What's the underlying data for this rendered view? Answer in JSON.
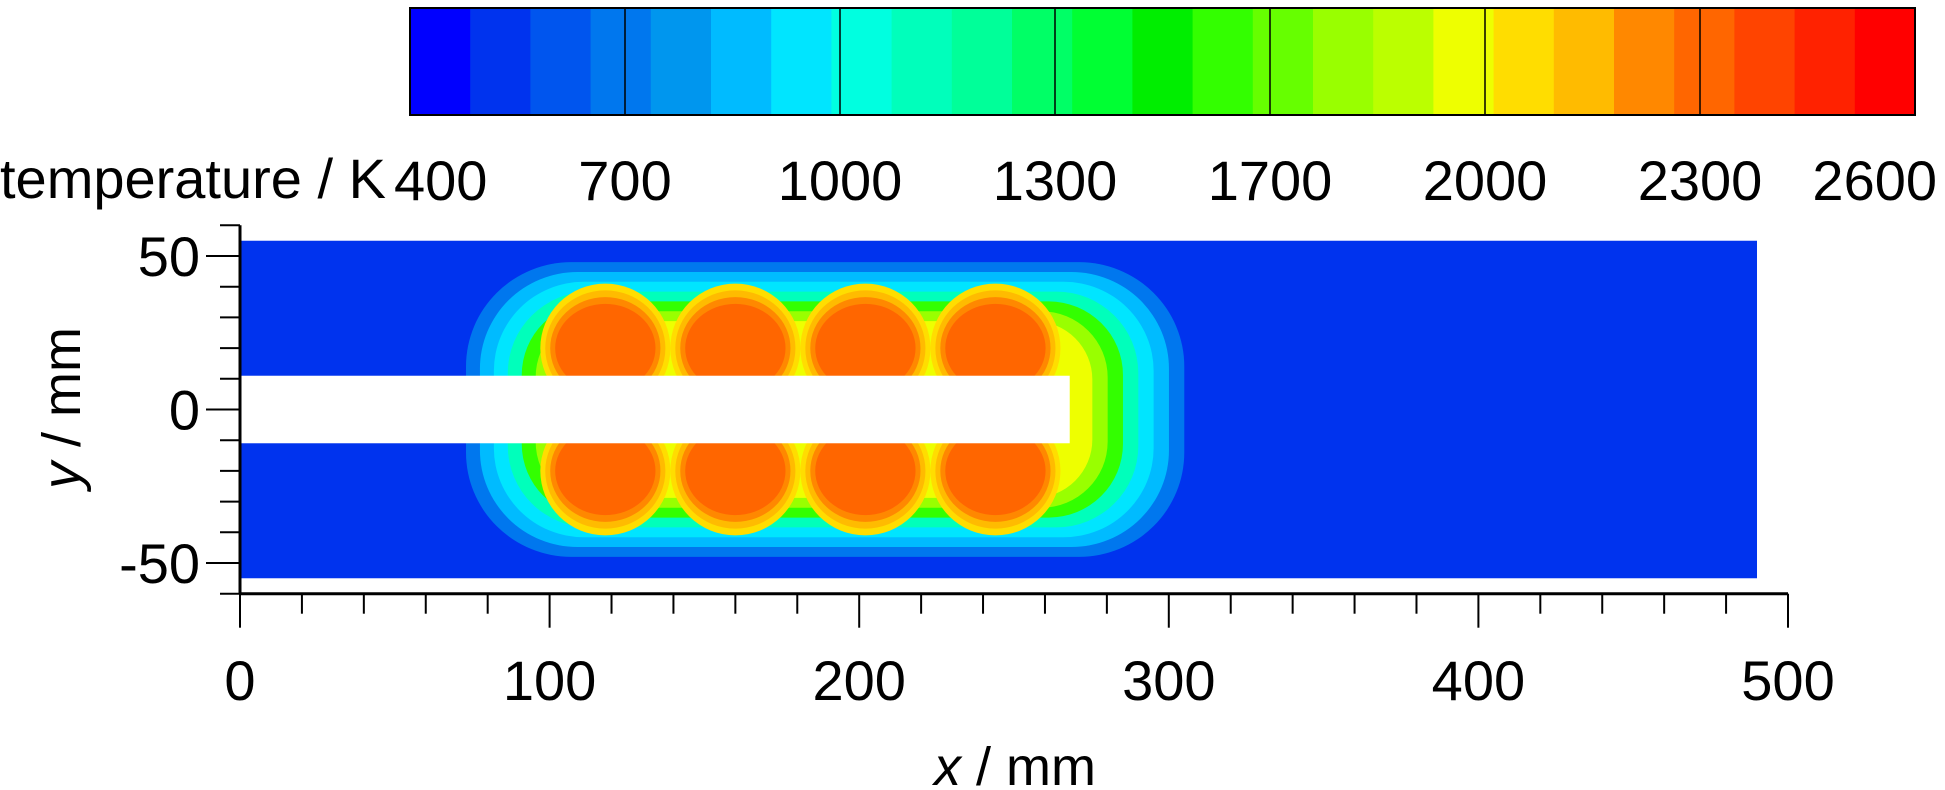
{
  "colorbar": {
    "title": "temperature / K",
    "tick_labels": [
      "400",
      "700",
      "1000",
      "1300",
      "1700",
      "2000",
      "2300",
      "2600"
    ],
    "colors": [
      "#0000ff",
      "#0033ee",
      "#0055ee",
      "#0077ee",
      "#0096ee",
      "#00bbff",
      "#00e5ff",
      "#00ffe0",
      "#00ffbb",
      "#00ff99",
      "#00ff66",
      "#00ff33",
      "#00ee00",
      "#33ff00",
      "#66ff00",
      "#99ff00",
      "#bbff00",
      "#eeff00",
      "#ffdd00",
      "#ffbb00",
      "#ff8800",
      "#ff6600",
      "#ff4400",
      "#ff2200",
      "#ff0000"
    ]
  },
  "chart_data": {
    "type": "heatmap",
    "variable": "temperature",
    "unit": "K",
    "xlabel_var": "x",
    "xlabel_unit": " / mm",
    "ylabel_var": "y",
    "ylabel_unit": " / mm",
    "xlim": [
      0,
      500
    ],
    "ylim": [
      -60,
      60
    ],
    "domain_x": [
      0,
      490
    ],
    "domain_y": [
      -55,
      55
    ],
    "x_ticks": [
      "0",
      "100",
      "200",
      "300",
      "400",
      "500"
    ],
    "y_ticks": [
      "50",
      "0",
      "-50"
    ],
    "x_tick_values": [
      0,
      100,
      200,
      300,
      400,
      500
    ],
    "y_tick_values": [
      50,
      0,
      -50
    ],
    "x_minor_step": 20,
    "y_minor_step": 10,
    "ambient_temperature": 400,
    "peak_temperature": 2300,
    "insert": {
      "x": [
        0,
        268
      ],
      "y": [
        -11,
        11
      ]
    },
    "hot_cores": [
      {
        "x": 118,
        "y": 20
      },
      {
        "x": 160,
        "y": 20
      },
      {
        "x": 202,
        "y": 20
      },
      {
        "x": 244,
        "y": 20
      },
      {
        "x": 118,
        "y": -20
      },
      {
        "x": 160,
        "y": -20
      },
      {
        "x": 202,
        "y": -20
      },
      {
        "x": 244,
        "y": -20
      }
    ],
    "levels": [
      {
        "temp": 600,
        "color": "#0077ee"
      },
      {
        "temp": 800,
        "color": "#00bbff"
      },
      {
        "temp": 1000,
        "color": "#00e5ff"
      },
      {
        "temp": 1200,
        "color": "#00ffbb"
      },
      {
        "temp": 1400,
        "color": "#33ff00"
      },
      {
        "temp": 1600,
        "color": "#99ff00"
      },
      {
        "temp": 1750,
        "color": "#eeff00"
      },
      {
        "temp": 1900,
        "color": "#ffdd00"
      },
      {
        "temp": 2050,
        "color": "#ffbb00"
      },
      {
        "temp": 2200,
        "color": "#ff8800"
      },
      {
        "temp": 2300,
        "color": "#ff6600"
      }
    ],
    "background_color": "#0033ee"
  }
}
